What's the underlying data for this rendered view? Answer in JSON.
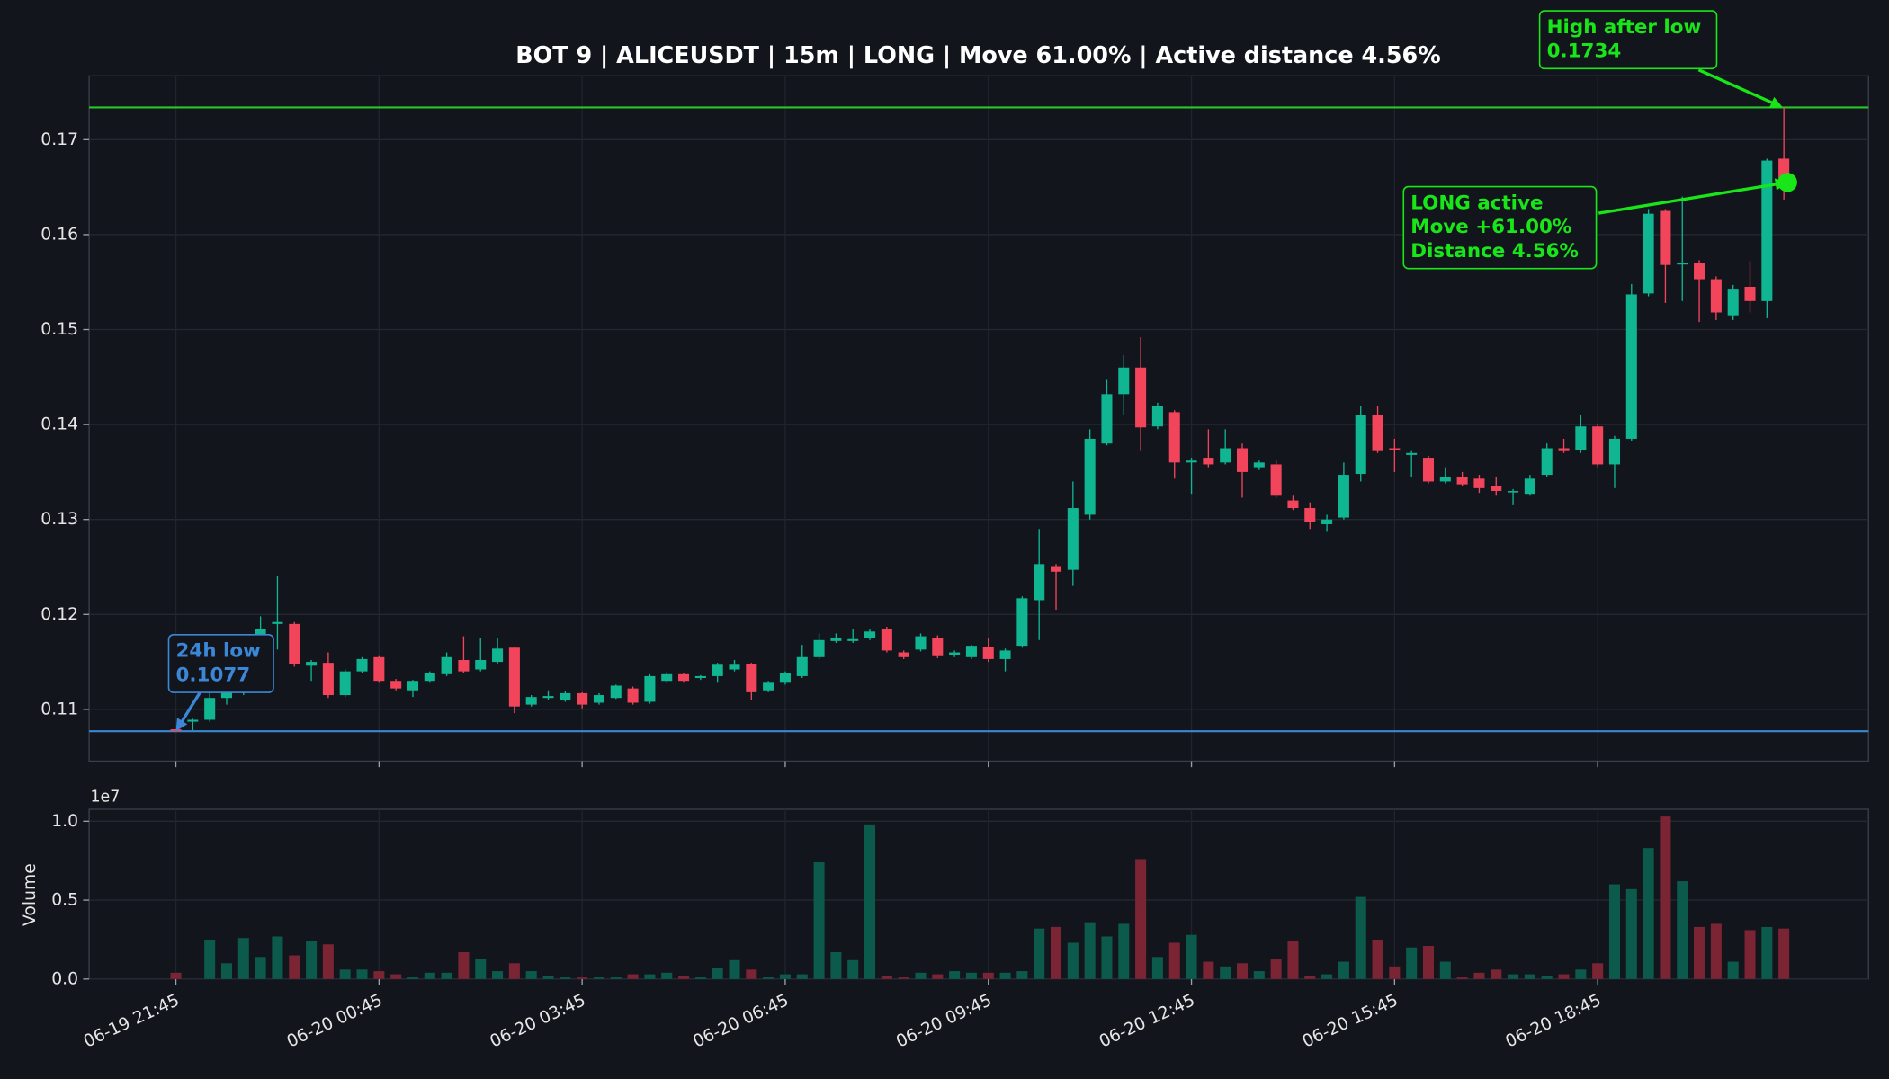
{
  "chart_data": {
    "type": "candlestick",
    "title": "BOT 9 | ALICEUSDT | 15m | LONG | Move 61.00% | Active distance 4.56%",
    "categories": [
      "06-19 21:45",
      null,
      null,
      null,
      null,
      null,
      null,
      null,
      null,
      null,
      null,
      null,
      "06-20 00:45",
      null,
      null,
      null,
      null,
      null,
      null,
      null,
      null,
      null,
      null,
      null,
      "06-20 03:45",
      null,
      null,
      null,
      null,
      null,
      null,
      null,
      null,
      null,
      null,
      null,
      "06-20 06:45",
      null,
      null,
      null,
      null,
      null,
      null,
      null,
      null,
      null,
      null,
      null,
      "06-20 09:45",
      null,
      null,
      null,
      null,
      null,
      null,
      null,
      null,
      null,
      null,
      null,
      "06-20 12:45",
      null,
      null,
      null,
      null,
      null,
      null,
      null,
      null,
      null,
      null,
      null,
      "06-20 15:45",
      null,
      null,
      null,
      null,
      null,
      null,
      null,
      null,
      null,
      null,
      null,
      "06-20 18:45",
      null,
      null,
      null,
      null,
      null,
      null,
      null,
      null,
      null,
      null,
      null
    ],
    "open": [
      0.1079,
      0.1087,
      0.1089,
      0.1112,
      0.112,
      0.116,
      0.119,
      0.119,
      0.1146,
      0.1149,
      0.1115,
      0.114,
      0.1155,
      0.113,
      0.112,
      0.113,
      0.1137,
      0.1152,
      0.1142,
      0.115,
      0.1165,
      0.1105,
      0.1112,
      0.111,
      0.1117,
      0.1107,
      0.1112,
      0.1122,
      0.1108,
      0.113,
      0.1137,
      0.1133,
      0.1135,
      0.1142,
      0.1148,
      0.112,
      0.1128,
      0.1135,
      0.1155,
      0.1172,
      0.1172,
      0.1175,
      0.1185,
      0.116,
      0.1163,
      0.1175,
      0.1157,
      0.1155,
      0.1166,
      0.1153,
      0.1167,
      0.1215,
      0.125,
      0.1247,
      0.1305,
      0.138,
      0.1432,
      0.146,
      0.1398,
      0.1413,
      0.136,
      0.1365,
      0.136,
      0.1375,
      0.1355,
      0.1358,
      0.132,
      0.1312,
      0.1295,
      0.1302,
      0.1348,
      0.141,
      0.1375,
      0.1368,
      0.1365,
      0.134,
      0.1345,
      0.1343,
      0.1335,
      0.1329,
      0.1327,
      0.1347,
      0.1375,
      0.1373,
      0.1398,
      0.1358,
      0.1385,
      0.1538,
      0.1625,
      0.1569,
      0.157,
      0.1553,
      0.1515,
      0.1545,
      0.153,
      0.168
    ],
    "high": [
      0.1079,
      0.109,
      0.112,
      0.1135,
      0.1165,
      0.1198,
      0.124,
      0.1192,
      0.1152,
      0.116,
      0.1142,
      0.1155,
      0.1156,
      0.1132,
      0.1131,
      0.114,
      0.116,
      0.1177,
      0.1175,
      0.1175,
      0.1166,
      0.1115,
      0.112,
      0.1119,
      0.1118,
      0.1117,
      0.1126,
      0.1124,
      0.1137,
      0.1139,
      0.1138,
      0.1136,
      0.1149,
      0.1152,
      0.1149,
      0.113,
      0.114,
      0.1168,
      0.118,
      0.118,
      0.1185,
      0.1185,
      0.1187,
      0.1162,
      0.118,
      0.1178,
      0.1162,
      0.1168,
      0.1175,
      0.1164,
      0.1219,
      0.129,
      0.1253,
      0.134,
      0.1395,
      0.1447,
      0.1473,
      0.1492,
      0.1423,
      0.1415,
      0.1365,
      0.1395,
      0.1395,
      0.138,
      0.1362,
      0.1362,
      0.1325,
      0.1318,
      0.1305,
      0.136,
      0.142,
      0.142,
      0.1385,
      0.1372,
      0.1367,
      0.1355,
      0.135,
      0.1347,
      0.1345,
      0.1332,
      0.1347,
      0.138,
      0.1385,
      0.141,
      0.14,
      0.1388,
      0.1548,
      0.1627,
      0.1627,
      0.164,
      0.1573,
      0.1556,
      0.1547,
      0.1572,
      0.168,
      0.1734
    ],
    "low": [
      0.1077,
      0.1078,
      0.1087,
      0.1105,
      0.1115,
      0.1158,
      0.1163,
      0.1145,
      0.113,
      0.1112,
      0.1113,
      0.1138,
      0.1128,
      0.112,
      0.1113,
      0.1128,
      0.1135,
      0.1138,
      0.114,
      0.1148,
      0.1096,
      0.1103,
      0.111,
      0.1108,
      0.1101,
      0.1105,
      0.1111,
      0.1105,
      0.1106,
      0.1128,
      0.1128,
      0.1131,
      0.1128,
      0.114,
      0.111,
      0.1118,
      0.1126,
      0.1133,
      0.1153,
      0.117,
      0.117,
      0.1173,
      0.116,
      0.1153,
      0.1161,
      0.1154,
      0.1155,
      0.1153,
      0.115,
      0.114,
      0.1165,
      0.1173,
      0.1205,
      0.123,
      0.13,
      0.1378,
      0.141,
      0.1372,
      0.1395,
      0.1343,
      0.1327,
      0.1355,
      0.1358,
      0.1323,
      0.1352,
      0.1323,
      0.131,
      0.129,
      0.1287,
      0.13,
      0.134,
      0.137,
      0.135,
      0.1345,
      0.1338,
      0.1338,
      0.1335,
      0.1328,
      0.1325,
      0.1315,
      0.1325,
      0.1345,
      0.137,
      0.137,
      0.1355,
      0.1333,
      0.1383,
      0.1535,
      0.1528,
      0.153,
      0.1508,
      0.151,
      0.151,
      0.1518,
      0.1512,
      0.1637
    ],
    "close": [
      0.1077,
      0.1089,
      0.1112,
      0.112,
      0.116,
      0.1185,
      0.1192,
      0.1148,
      0.115,
      0.1115,
      0.114,
      0.1153,
      0.113,
      0.1122,
      0.113,
      0.1138,
      0.1155,
      0.114,
      0.1152,
      0.1164,
      0.1103,
      0.1113,
      0.1114,
      0.1117,
      0.1105,
      0.1115,
      0.1125,
      0.1107,
      0.1135,
      0.1137,
      0.113,
      0.1135,
      0.1147,
      0.1147,
      0.1118,
      0.1128,
      0.1138,
      0.1155,
      0.1173,
      0.1175,
      0.1174,
      0.1182,
      0.1162,
      0.1155,
      0.1177,
      0.1156,
      0.116,
      0.1167,
      0.1153,
      0.1162,
      0.1217,
      0.1253,
      0.1245,
      0.1312,
      0.1385,
      0.1432,
      0.146,
      0.1397,
      0.142,
      0.136,
      0.1362,
      0.1358,
      0.1375,
      0.135,
      0.136,
      0.1325,
      0.1312,
      0.1297,
      0.13,
      0.1347,
      0.141,
      0.1372,
      0.1373,
      0.137,
      0.134,
      0.1345,
      0.1337,
      0.1333,
      0.133,
      0.133,
      0.1343,
      0.1375,
      0.1372,
      0.1398,
      0.1358,
      0.1385,
      0.1537,
      0.1622,
      0.1568,
      0.157,
      0.1553,
      0.1518,
      0.1543,
      0.153,
      0.1678,
      0.1655
    ],
    "up_color": "#10b592",
    "down_color": "#f2455b",
    "ylim": [
      0.10455,
      0.17672
    ],
    "yticks": [
      0.11,
      0.12,
      0.13,
      0.14,
      0.15,
      0.16,
      0.17
    ],
    "grid": true,
    "lines": [
      {
        "value": 0.1734,
        "color": "#29c629"
      },
      {
        "value": 0.1077,
        "color": "#3b87d6"
      }
    ],
    "marker": {
      "value": 0.1655,
      "color": "#19e619"
    },
    "annotations": [
      {
        "text": [
          "24h low",
          "0.1077"
        ],
        "color": "#3b87d6"
      },
      {
        "text": [
          "High after low",
          "0.1734"
        ],
        "color": "#19e619"
      },
      {
        "text": [
          "LONG active",
          "Move +61.00%",
          "Distance 4.56%"
        ],
        "color": "#19e619"
      }
    ],
    "volume": {
      "ylabel": "Volume",
      "offset_label": "1e7",
      "values": [
        0.04,
        0,
        0.25,
        0.1,
        0.26,
        0.14,
        0.27,
        0.15,
        0.24,
        0.22,
        0.06,
        0.06,
        0.05,
        0.03,
        0.01,
        0.04,
        0.04,
        0.17,
        0.13,
        0.05,
        0.1,
        0.05,
        0.02,
        0.01,
        0.01,
        0.01,
        0.01,
        0.03,
        0.03,
        0.04,
        0.02,
        0.01,
        0.07,
        0.12,
        0.06,
        0.01,
        0.03,
        0.03,
        0.74,
        0.17,
        0.12,
        0.98,
        0.02,
        0.01,
        0.04,
        0.03,
        0.05,
        0.04,
        0.04,
        0.04,
        0.05,
        0.32,
        0.33,
        0.23,
        0.36,
        0.27,
        0.35,
        0.76,
        0.14,
        0.23,
        0.28,
        0.11,
        0.08,
        0.1,
        0.05,
        0.13,
        0.24,
        0.02,
        0.03,
        0.11,
        0.52,
        0.25,
        0.08,
        0.2,
        0.21,
        0.11,
        0.01,
        0.04,
        0.06,
        0.03,
        0.03,
        0.02,
        0.03,
        0.06,
        0.1,
        0.6,
        0.57,
        0.83,
        1.03,
        0.62,
        0.33,
        0.35,
        0.11,
        0.31,
        0.33,
        0.32
      ],
      "ylim": [
        0,
        1.076
      ],
      "yticks": [
        {
          "value": 0,
          "label": "0.0"
        },
        0.5,
        {
          "value": 1,
          "label": "1.0"
        }
      ],
      "up_color": "#0c5a4b",
      "down_color": "#7a2434"
    }
  }
}
